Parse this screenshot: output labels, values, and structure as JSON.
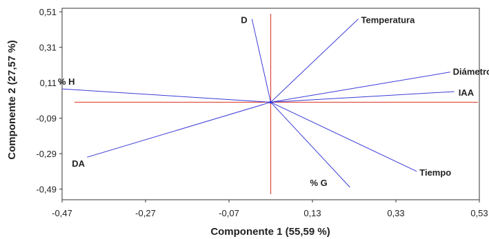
{
  "chart_data": {
    "type": "biplot",
    "xlabel": "Componente 1 (55,59 %)",
    "ylabel": "Componente 2 (27,57 %)",
    "xlim": [
      -0.47,
      0.53
    ],
    "ylim": [
      -0.55,
      0.53
    ],
    "xticks": [
      "-0,47",
      "-0,27",
      "-0,07",
      "0,13",
      "0,33",
      "0,53"
    ],
    "yticks": [
      "0,51",
      "0,31",
      "0,11",
      "-0,09",
      "-0,29",
      "-0,49"
    ],
    "reference_lines": {
      "x": 0.03,
      "y": 0.0,
      "color": "#e0453a"
    },
    "vector_color": "#3a3ad8",
    "vectors": [
      {
        "name": "D",
        "x": -0.015,
        "y": 0.47
      },
      {
        "name": "Temperatura",
        "x": 0.24,
        "y": 0.47
      },
      {
        "name": "Diámetro",
        "x": 0.46,
        "y": 0.17
      },
      {
        "name": "IAA",
        "x": 0.47,
        "y": 0.06
      },
      {
        "name": "% H",
        "x": -0.47,
        "y": 0.075
      },
      {
        "name": "DA",
        "x": -0.41,
        "y": -0.31
      },
      {
        "name": "Tiempo",
        "x": 0.38,
        "y": -0.39
      },
      {
        "name": "% G",
        "x": 0.22,
        "y": -0.48
      }
    ]
  }
}
